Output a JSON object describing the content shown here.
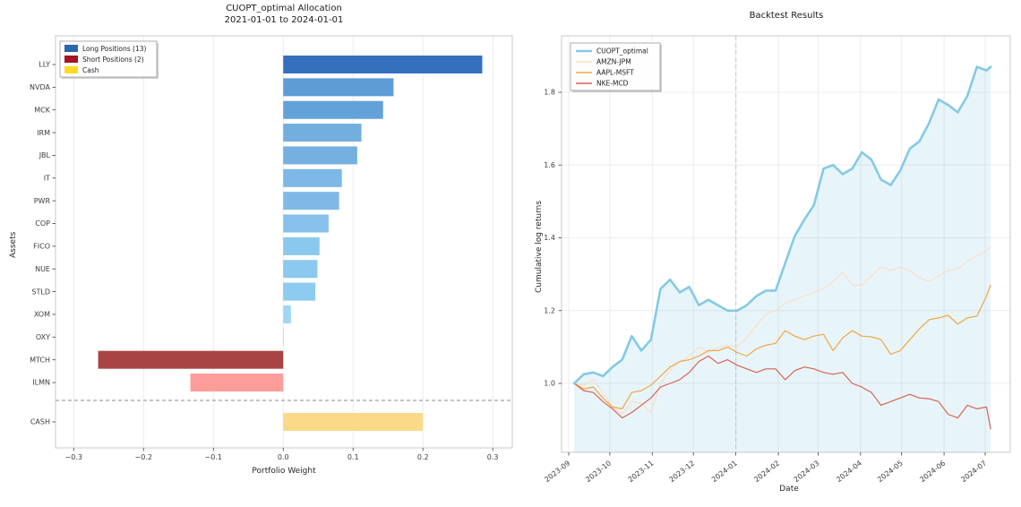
{
  "figure": {
    "left_title": "CUOPT_optimal Allocation",
    "left_subtitle": "2021-01-01 to 2024-01-01",
    "left_xlabel": "Portfolio Weight",
    "left_ylabel": "Assets",
    "right_title": "Backtest Results",
    "right_xlabel": "Date",
    "right_ylabel": "Cumulative log returns"
  },
  "chart_data": [
    {
      "id": "allocation",
      "type": "bar",
      "orientation": "horizontal",
      "title": "CUOPT_optimal Allocation",
      "subtitle": "2021-01-01 to 2024-01-01",
      "xlabel": "Portfolio Weight",
      "ylabel": "Assets",
      "xlim": [
        -0.326,
        0.328
      ],
      "xticks": [
        -0.3,
        -0.2,
        -0.1,
        0.0,
        0.1,
        0.2,
        0.3
      ],
      "grid": "vertical-light",
      "legend_position": "upper-left",
      "legend": [
        {
          "label": "Long Positions (13)",
          "color": "#2b67ab"
        },
        {
          "label": "Short Positions (2)",
          "color": "#a31520"
        },
        {
          "label": "Cash",
          "color": "#ffd928"
        }
      ],
      "separator_after": "ILMN",
      "bars": [
        {
          "asset": "LLY",
          "weight": 0.285,
          "group": "long",
          "color": "#3470bc"
        },
        {
          "asset": "NVDA",
          "weight": 0.158,
          "group": "long",
          "color": "#5e9cd6"
        },
        {
          "asset": "MCK",
          "weight": 0.143,
          "group": "long",
          "color": "#63a1d9"
        },
        {
          "asset": "IRM",
          "weight": 0.112,
          "group": "long",
          "color": "#72aede"
        },
        {
          "asset": "JBL",
          "weight": 0.106,
          "group": "long",
          "color": "#74b0e0"
        },
        {
          "asset": "IT",
          "weight": 0.084,
          "group": "long",
          "color": "#7db8e6"
        },
        {
          "asset": "PWR",
          "weight": 0.08,
          "group": "long",
          "color": "#7fbae7"
        },
        {
          "asset": "COP",
          "weight": 0.065,
          "group": "long",
          "color": "#85c1ea"
        },
        {
          "asset": "FICO",
          "weight": 0.052,
          "group": "long",
          "color": "#8ac8ee"
        },
        {
          "asset": "NUE",
          "weight": 0.049,
          "group": "long",
          "color": "#8bc9ee"
        },
        {
          "asset": "STLD",
          "weight": 0.046,
          "group": "long",
          "color": "#8dcbf0"
        },
        {
          "asset": "XOM",
          "weight": 0.011,
          "group": "long",
          "color": "#9ed7f6"
        },
        {
          "asset": "OXY",
          "weight": 0.001,
          "group": "long",
          "color": "#a8def9"
        },
        {
          "asset": "MTCH",
          "weight": -0.265,
          "group": "short",
          "color": "#a84444"
        },
        {
          "asset": "ILMN",
          "weight": -0.133,
          "group": "short",
          "color": "#fc9d9a"
        },
        {
          "asset": "CASH",
          "weight": 0.2,
          "group": "cash",
          "color": "#fada87"
        }
      ]
    },
    {
      "id": "backtest",
      "type": "line",
      "title": "Backtest Results",
      "xlabel": "Date",
      "ylabel": "Cumulative log returns",
      "yticks": [
        1.0,
        1.2,
        1.4,
        1.6,
        1.8
      ],
      "ylim": [
        0.81,
        1.955
      ],
      "xticks": [
        "2023-09",
        "2023-10",
        "2023-11",
        "2023-12",
        "2024-01",
        "2024-02",
        "2024-03",
        "2024-04",
        "2024-05",
        "2024-06",
        "2024-07"
      ],
      "grid": "both-light",
      "vline_dashed_at": "2024-01-01",
      "legend_position": "upper-left",
      "x": [
        "2023-09-05",
        "2023-09-12",
        "2023-09-19",
        "2023-09-26",
        "2023-10-03",
        "2023-10-10",
        "2023-10-17",
        "2023-10-24",
        "2023-10-31",
        "2023-11-07",
        "2023-11-14",
        "2023-11-21",
        "2023-11-28",
        "2023-12-05",
        "2023-12-12",
        "2023-12-19",
        "2023-12-26",
        "2024-01-02",
        "2024-01-09",
        "2024-01-16",
        "2024-01-23",
        "2024-01-30",
        "2024-02-06",
        "2024-02-13",
        "2024-02-20",
        "2024-02-27",
        "2024-03-05",
        "2024-03-12",
        "2024-03-19",
        "2024-03-26",
        "2024-04-02",
        "2024-04-09",
        "2024-04-16",
        "2024-04-23",
        "2024-04-30",
        "2024-05-07",
        "2024-05-14",
        "2024-05-21",
        "2024-05-28",
        "2024-06-04",
        "2024-06-11",
        "2024-06-18",
        "2024-06-25",
        "2024-07-02",
        "2024-07-05"
      ],
      "series": [
        {
          "name": "CUOPT_optimal",
          "color": "#85c9e6",
          "linewidth": 2.6,
          "area_fill": true,
          "values": [
            1.0,
            1.025,
            1.03,
            1.02,
            1.045,
            1.065,
            1.13,
            1.09,
            1.12,
            1.26,
            1.285,
            1.25,
            1.265,
            1.215,
            1.23,
            1.215,
            1.2,
            1.2,
            1.215,
            1.24,
            1.255,
            1.255,
            1.33,
            1.405,
            1.45,
            1.49,
            1.59,
            1.6,
            1.575,
            1.59,
            1.635,
            1.615,
            1.56,
            1.545,
            1.585,
            1.645,
            1.665,
            1.715,
            1.78,
            1.765,
            1.745,
            1.79,
            1.87,
            1.86,
            1.87
          ]
        },
        {
          "name": "AMZN-JPM",
          "color": "#fbdcc1",
          "linewidth": 1.1,
          "area_fill": false,
          "values": [
            1.0,
            0.995,
            1.01,
            0.975,
            0.935,
            0.915,
            0.95,
            0.945,
            0.92,
            1.0,
            1.035,
            1.06,
            1.075,
            1.1,
            1.085,
            1.1,
            1.105,
            1.1,
            1.125,
            1.16,
            1.19,
            1.2,
            1.22,
            1.23,
            1.24,
            1.25,
            1.26,
            1.28,
            1.305,
            1.27,
            1.27,
            1.295,
            1.32,
            1.31,
            1.32,
            1.31,
            1.29,
            1.28,
            1.295,
            1.31,
            1.315,
            1.335,
            1.35,
            1.365,
            1.375
          ]
        },
        {
          "name": "AAPL-MSFT",
          "color": "#f3a53f",
          "linewidth": 1.2,
          "area_fill": false,
          "values": [
            1.0,
            0.985,
            0.99,
            0.96,
            0.935,
            0.93,
            0.975,
            0.98,
            0.995,
            1.02,
            1.045,
            1.06,
            1.065,
            1.075,
            1.09,
            1.09,
            1.1,
            1.085,
            1.075,
            1.095,
            1.105,
            1.11,
            1.145,
            1.13,
            1.12,
            1.13,
            1.135,
            1.09,
            1.125,
            1.145,
            1.13,
            1.128,
            1.12,
            1.08,
            1.09,
            1.12,
            1.15,
            1.175,
            1.18,
            1.187,
            1.163,
            1.18,
            1.185,
            1.24,
            1.27
          ]
        },
        {
          "name": "NKE-MCD",
          "color": "#dc6250",
          "linewidth": 1.2,
          "area_fill": false,
          "values": [
            1.0,
            0.98,
            0.975,
            0.95,
            0.93,
            0.905,
            0.92,
            0.94,
            0.96,
            0.99,
            1.0,
            1.01,
            1.03,
            1.06,
            1.075,
            1.055,
            1.065,
            1.05,
            1.04,
            1.03,
            1.04,
            1.04,
            1.01,
            1.035,
            1.045,
            1.04,
            1.03,
            1.025,
            1.03,
            1.0,
            0.99,
            0.975,
            0.94,
            0.95,
            0.96,
            0.97,
            0.96,
            0.958,
            0.95,
            0.915,
            0.905,
            0.94,
            0.93,
            0.935,
            0.875
          ]
        }
      ]
    }
  ]
}
